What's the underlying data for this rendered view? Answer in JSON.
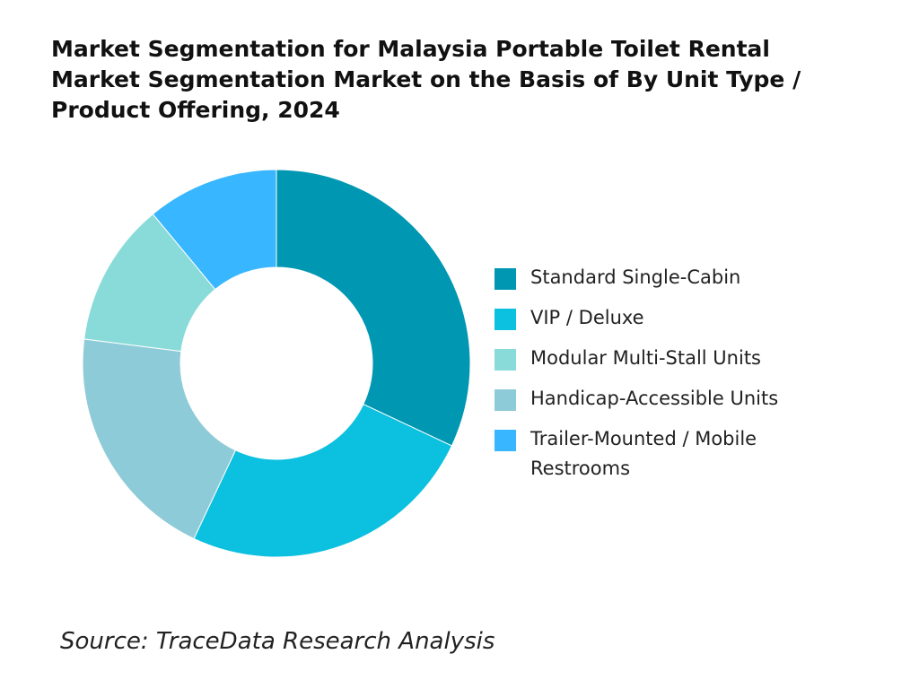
{
  "chart_data": {
    "type": "pie",
    "donut": true,
    "title": "Market Segmentation for Malaysia Portable Toilet Rental Market Segmentation Market on the Basis of By Unit Type / Product Offering, 2024",
    "categories": [
      "Standard Single-Cabin",
      "VIP / Deluxe",
      "Modular Multi-Stall Units",
      "Handicap-Accessible Units",
      "Trailer-Mounted / Mobile Restrooms"
    ],
    "values": [
      32,
      25,
      12,
      20,
      11
    ],
    "drawing_order": [
      0,
      1,
      3,
      2,
      4
    ],
    "colors": [
      "#0097b2",
      "#0cc0df",
      "#89dbd9",
      "#8ecbd8",
      "#38b6ff"
    ],
    "legend_placement": "right"
  },
  "source": "Source: TraceData Research Analysis"
}
